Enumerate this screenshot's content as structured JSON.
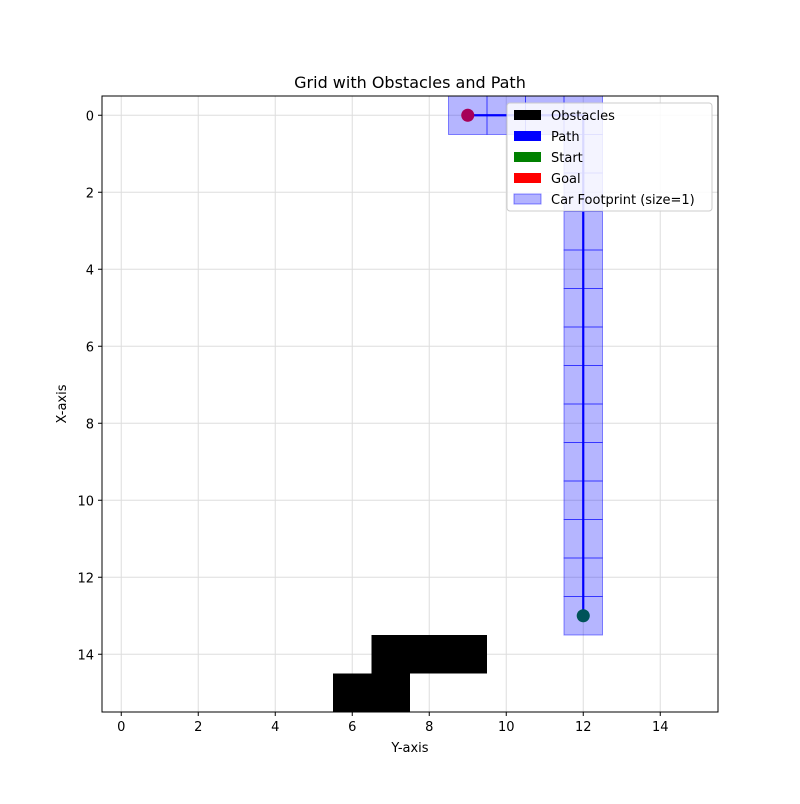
{
  "chart_data": {
    "type": "grid-path",
    "title": "Grid with Obstacles and Path",
    "xlabel": "Y-axis",
    "ylabel": "X-axis",
    "xlim": [
      -0.5,
      15.5
    ],
    "ylim": [
      15.5,
      -0.5
    ],
    "xticks": [
      0,
      2,
      4,
      6,
      8,
      10,
      12,
      14
    ],
    "yticks": [
      0,
      2,
      4,
      6,
      8,
      10,
      12,
      14
    ],
    "grid": true,
    "obstacles": [
      {
        "col": 7,
        "row": 14
      },
      {
        "col": 8,
        "row": 14
      },
      {
        "col": 9,
        "row": 14
      },
      {
        "col": 6,
        "row": 15
      },
      {
        "col": 7,
        "row": 15
      }
    ],
    "path": [
      {
        "y": 9,
        "x": 0
      },
      {
        "y": 10,
        "x": 0
      },
      {
        "y": 11,
        "x": 0
      },
      {
        "y": 12,
        "x": 0
      },
      {
        "y": 12,
        "x": 1
      },
      {
        "y": 12,
        "x": 2
      },
      {
        "y": 12,
        "x": 3
      },
      {
        "y": 12,
        "x": 4
      },
      {
        "y": 12,
        "x": 5
      },
      {
        "y": 12,
        "x": 6
      },
      {
        "y": 12,
        "x": 7
      },
      {
        "y": 12,
        "x": 8
      },
      {
        "y": 12,
        "x": 9
      },
      {
        "y": 12,
        "x": 10
      },
      {
        "y": 12,
        "x": 11
      },
      {
        "y": 12,
        "x": 12
      },
      {
        "y": 12,
        "x": 13
      }
    ],
    "start": {
      "y": 12,
      "x": 13
    },
    "goal": {
      "y": 9,
      "x": 0
    },
    "legend_position": "top-right",
    "legend": [
      {
        "label": "Obstacles",
        "color": "#000000"
      },
      {
        "label": "Path",
        "color": "#0000ff"
      },
      {
        "label": "Start",
        "color": "#008000"
      },
      {
        "label": "Goal",
        "color": "#ff0000"
      },
      {
        "label": "Car Footprint (size=1)",
        "color": "#b3b3ff"
      }
    ]
  }
}
